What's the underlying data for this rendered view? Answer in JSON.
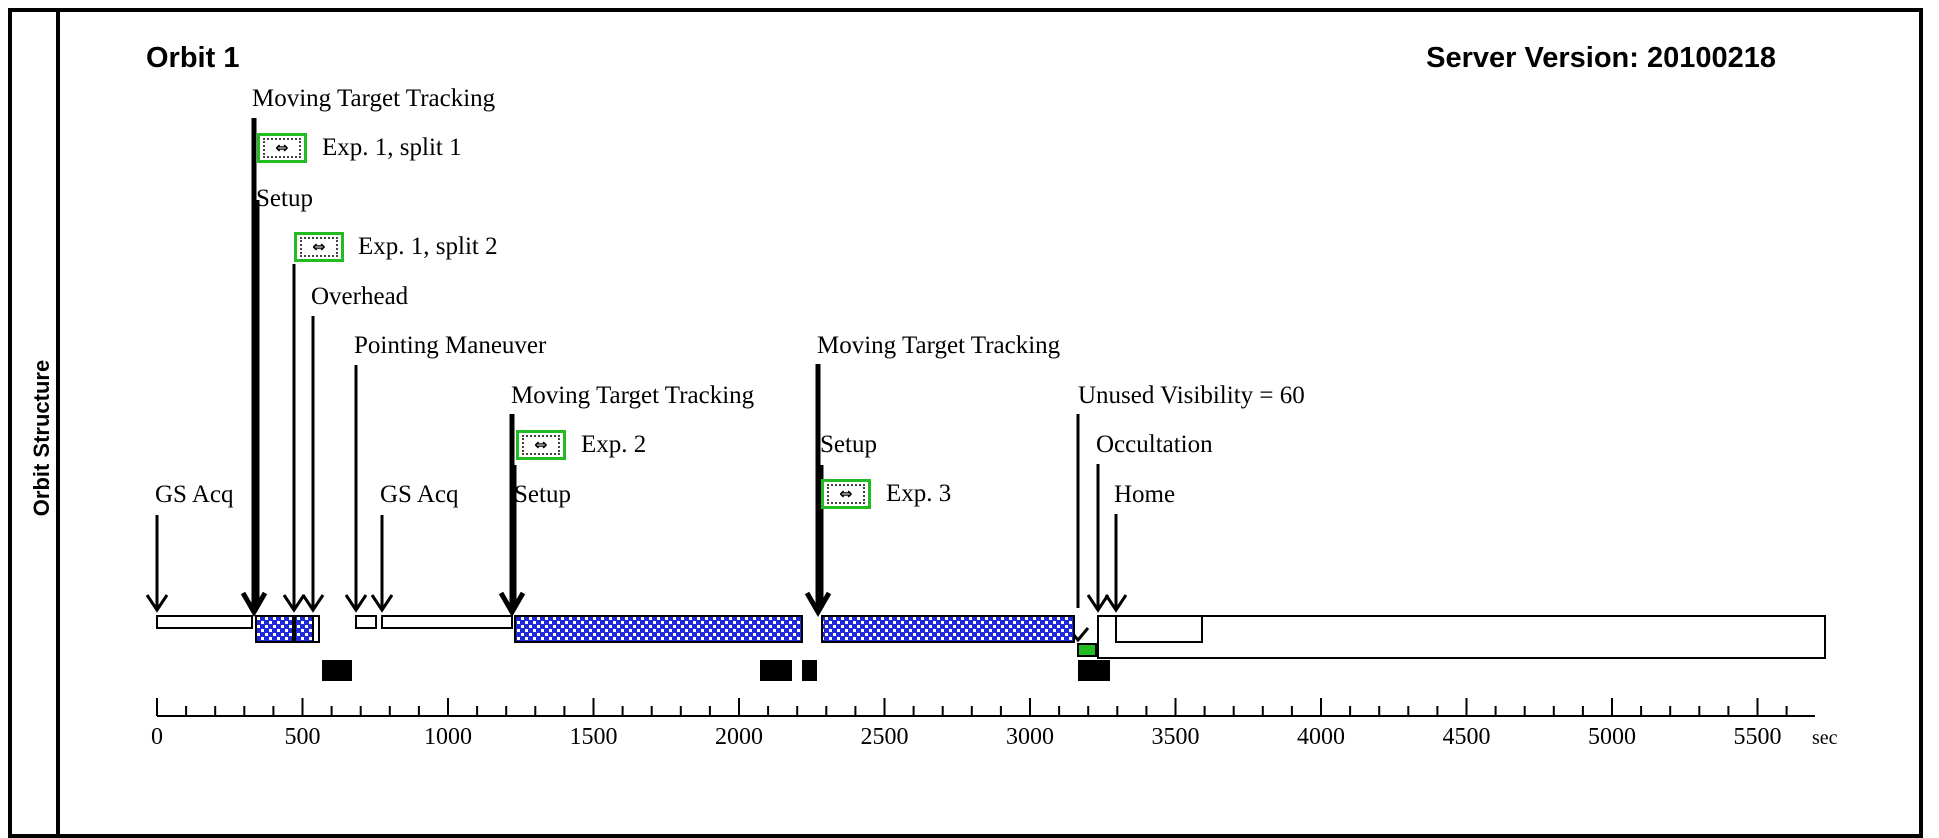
{
  "side_title": "Orbit Structure",
  "orbit_title": "Orbit 1",
  "server_version": "Server Version: 20100218",
  "axis": {
    "ticks": [
      "0",
      "500",
      "1000",
      "1500",
      "2000",
      "2500",
      "3000",
      "3500",
      "4000",
      "4500",
      "5000",
      "5500"
    ],
    "unit": "sec"
  },
  "expand_icon": "⇔",
  "labels": {
    "moving_target_1": "Moving Target Tracking",
    "exp1_split1": "Exp. 1, split 1",
    "setup_1": "Setup",
    "exp1_split2": "Exp. 1, split 2",
    "overhead": "Overhead",
    "pointing_maneuver": "Pointing Maneuver",
    "moving_target_2": "Moving Target Tracking",
    "moving_target_3": "Moving Target Tracking",
    "unused_visibility": "Unused Visibility = 60",
    "exp2": "Exp. 2",
    "setup_2": "Setup",
    "setup_3": "Setup",
    "occultation": "Occultation",
    "gs_acq_1": "GS Acq",
    "gs_acq_2": "GS Acq",
    "exp3": "Exp. 3",
    "home": "Home"
  },
  "colors": {
    "exposure_fill": "#1f2ad6",
    "green_marker": "#22bb22",
    "button_border": "#22bb22"
  }
}
